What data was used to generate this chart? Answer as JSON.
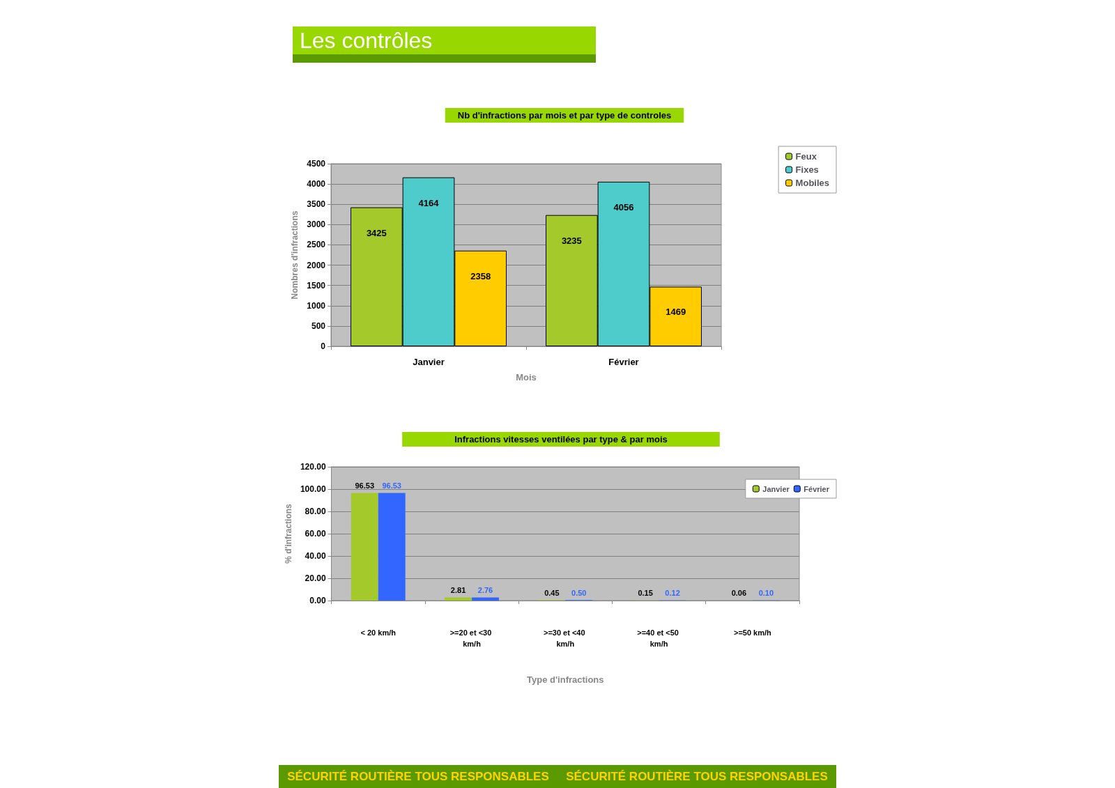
{
  "chart_data": [
    {
      "type": "bar",
      "title": "Nb d'infractions par mois et par type de controles",
      "xlabel": "Mois",
      "ylabel": "Nombres d'infractions",
      "annotations": [
        "Les contrôles"
      ],
      "categories": [
        "Janvier",
        "Février"
      ],
      "series": [
        {
          "name": "Feux",
          "color": "#a4c92a",
          "values": [
            3425,
            3235
          ]
        },
        {
          "name": "Fixes",
          "color": "#4ecbcb",
          "values": [
            4164,
            4056
          ]
        },
        {
          "name": "Mobiles",
          "color": "#ffcc00",
          "values": [
            2358,
            1469
          ]
        }
      ],
      "ylim": [
        0,
        4500
      ],
      "yticks": [
        0,
        500,
        1000,
        1500,
        2000,
        2500,
        3000,
        3500,
        4000,
        4500
      ],
      "grid": "y",
      "legend": "top right",
      "data_labels": true
    },
    {
      "type": "bar",
      "title": "Infractions vitesses ventilées par type & par mois",
      "xlabel": "Type d'infractions",
      "ylabel": "% d'infractions",
      "annotations": [
        "SÉCURITÉ ROUTIÈRE TOUS RESPONSABLES",
        "SÉCURITÉ ROUTIÈRE TOUS RESPONSABLES"
      ],
      "categories": [
        "< 20 km/h",
        ">=20 et <30 km/h",
        ">=30 et <40 km/h",
        ">=40 et <50 km/h",
        ">=50 km/h"
      ],
      "series": [
        {
          "name": "Janvier",
          "color": "#a4c92a",
          "values": [
            96.53,
            2.81,
            0.45,
            0.15,
            0.06
          ],
          "value_labels": [
            "96.53",
            "2.81",
            "0.45",
            "0.15",
            "0.06"
          ]
        },
        {
          "name": "Février",
          "color": "#3366ff",
          "values": [
            96.53,
            2.76,
            0.5,
            0.12,
            0.1
          ],
          "value_labels": [
            "96.53",
            "2.76",
            "0.50",
            "0.12",
            "0.10"
          ]
        }
      ],
      "ylim": [
        0,
        120
      ],
      "yticks": [
        {
          "value": 0,
          "label": "0.00"
        },
        {
          "value": 20,
          "label": "20.00"
        },
        {
          "value": 40,
          "label": "40.00"
        },
        {
          "value": 60,
          "label": "60.00"
        },
        {
          "value": 80,
          "label": "80.00"
        },
        {
          "value": 100,
          "label": "100.00"
        },
        {
          "value": 120,
          "label": "120.00"
        }
      ],
      "grid": "y",
      "legend": "top right"
    }
  ]
}
